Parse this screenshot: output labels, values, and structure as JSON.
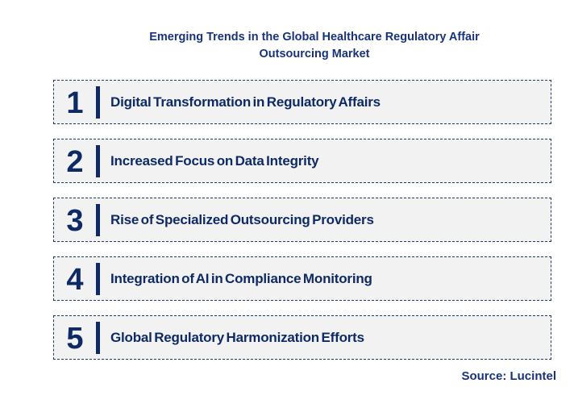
{
  "title": {
    "text": "Emerging Trends in the Global Healthcare Regulatory Affair Outsourcing Market"
  },
  "trends": [
    {
      "number": "1",
      "label": "Digital Transformation in Regulatory Affairs"
    },
    {
      "number": "2",
      "label": "Increased Focus on Data Integrity"
    },
    {
      "number": "3",
      "label": "Rise of Specialized Outsourcing Providers"
    },
    {
      "number": "4",
      "label": "Integration of AI in Compliance Monitoring"
    },
    {
      "number": "5",
      "label": "Global Regulatory Harmonization Efforts"
    }
  ],
  "source": {
    "text": "Source: Lucintel"
  },
  "colors": {
    "background": "#FFFFFF",
    "card_background": "#F2F2F2",
    "dashed_border": "#1F3864",
    "number_and_bar": "#0E2A66",
    "title_text": "#16337B",
    "label_text": "#0E2A66"
  }
}
